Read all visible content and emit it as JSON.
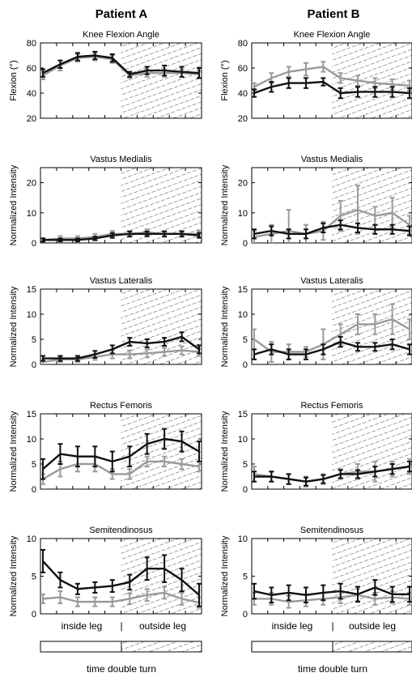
{
  "column_headers": [
    "Patient A",
    "Patient B"
  ],
  "bottom": {
    "segment_labels": [
      "inside leg",
      "|",
      "outside leg"
    ],
    "xlabel": "time double turn"
  },
  "colors": {
    "black_series": "#111111",
    "gray_series": "#9a9a9a",
    "hatch": "#555555"
  },
  "chart_data": [
    {
      "id": "A-knee",
      "type": "line",
      "title": "Knee Flexion Angle",
      "ylabel": "Flexion (°)",
      "ylim": [
        20,
        80
      ],
      "yticks": [
        "20",
        "40",
        "60",
        "80"
      ],
      "grid": false,
      "hatched_region": "outside leg",
      "x": [
        0,
        1,
        2,
        3,
        4,
        5,
        6,
        7,
        8,
        9
      ],
      "series": [
        {
          "color": "black",
          "values": [
            56,
            63,
            69,
            70,
            68,
            55,
            58,
            58,
            57,
            56
          ],
          "err": [
            3,
            3,
            3,
            3,
            3,
            2,
            3,
            4,
            4,
            4
          ]
        },
        {
          "color": "gray",
          "values": [
            54,
            62,
            68,
            69,
            67,
            54,
            56,
            56,
            56,
            55
          ],
          "err": [
            3,
            4,
            3,
            3,
            3,
            2,
            3,
            3,
            3,
            3
          ]
        }
      ]
    },
    {
      "id": "B-knee",
      "type": "line",
      "title": "Knee Flexion Angle",
      "ylabel": "Flexion (°)",
      "ylim": [
        20,
        80
      ],
      "yticks": [
        "20",
        "40",
        "60",
        "80"
      ],
      "grid": false,
      "hatched_region": "outside leg",
      "x": [
        0,
        1,
        2,
        3,
        4,
        5,
        6,
        7,
        8,
        9
      ],
      "series": [
        {
          "color": "black",
          "values": [
            40,
            45,
            48,
            48,
            49,
            40,
            41,
            41,
            41,
            40
          ],
          "err": [
            3,
            4,
            4,
            4,
            3,
            4,
            4,
            4,
            4,
            4
          ]
        },
        {
          "color": "gray",
          "values": [
            45,
            52,
            57,
            59,
            61,
            52,
            50,
            48,
            47,
            46
          ],
          "err": [
            3,
            4,
            4,
            5,
            4,
            4,
            4,
            4,
            4,
            4
          ]
        }
      ]
    },
    {
      "id": "A-vm",
      "type": "line",
      "title": "Vastus Medialis",
      "ylabel": "Normalized Intensity",
      "ylim": [
        0,
        25
      ],
      "yticks": [
        "0",
        "10",
        "20"
      ],
      "grid": false,
      "hatched_region": "outside leg",
      "x": [
        0,
        1,
        2,
        3,
        4,
        5,
        6,
        7,
        8,
        9
      ],
      "series": [
        {
          "color": "black",
          "values": [
            1,
            1,
            1,
            1.5,
            2.5,
            3,
            3,
            3,
            3,
            2.5
          ],
          "err": [
            0.5,
            0.5,
            0.5,
            0.6,
            0.8,
            0.8,
            0.8,
            0.8,
            0.8,
            0.8
          ]
        },
        {
          "color": "gray",
          "values": [
            1,
            1.5,
            1.5,
            2,
            3,
            3,
            3.5,
            3,
            3,
            3
          ],
          "err": [
            0.6,
            0.8,
            0.8,
            1,
            1,
            1,
            1,
            1,
            1,
            1
          ]
        }
      ]
    },
    {
      "id": "B-vm",
      "type": "line",
      "title": "Vastus Medialis",
      "ylabel": "Normalized Intensity",
      "ylim": [
        0,
        25
      ],
      "yticks": [
        "0",
        "10",
        "20"
      ],
      "grid": false,
      "hatched_region": "outside leg",
      "x": [
        0,
        1,
        2,
        3,
        4,
        5,
        6,
        7,
        8,
        9
      ],
      "series": [
        {
          "color": "black",
          "values": [
            3,
            4,
            3,
            3,
            5,
            6,
            5,
            4.5,
            4.5,
            4
          ],
          "err": [
            1.5,
            1.5,
            1.5,
            1.5,
            1.5,
            1.5,
            1.5,
            1.5,
            1.5,
            1.5
          ]
        },
        {
          "color": "gray",
          "values": [
            2,
            3,
            4,
            3,
            4,
            9,
            11,
            9,
            10,
            6
          ],
          "err": [
            2,
            3,
            7,
            3,
            3,
            5,
            8,
            3,
            5,
            3
          ]
        }
      ]
    },
    {
      "id": "A-vl",
      "type": "line",
      "title": "Vastus Lateralis",
      "ylabel": "Normalized Intensity",
      "ylim": [
        0,
        15
      ],
      "yticks": [
        "0",
        "5",
        "10",
        "15"
      ],
      "grid": false,
      "hatched_region": "outside leg",
      "x": [
        0,
        1,
        2,
        3,
        4,
        5,
        6,
        7,
        8,
        9
      ],
      "series": [
        {
          "color": "black",
          "values": [
            1.2,
            1.2,
            1.2,
            2,
            3,
            4.5,
            4.2,
            4.5,
            5.5,
            3
          ],
          "err": [
            0.5,
            0.5,
            0.5,
            0.7,
            0.8,
            0.8,
            0.8,
            0.8,
            0.9,
            0.8
          ]
        },
        {
          "color": "gray",
          "values": [
            0.5,
            1,
            1,
            1.5,
            2,
            2,
            2.2,
            2.5,
            2.8,
            2.5
          ],
          "err": [
            0.5,
            0.5,
            0.5,
            0.6,
            0.8,
            0.8,
            0.8,
            0.8,
            0.8,
            0.8
          ]
        }
      ]
    },
    {
      "id": "B-vl",
      "type": "line",
      "title": "Vastus Lateralis",
      "ylabel": "Normalized Intensity",
      "ylim": [
        0,
        15
      ],
      "yticks": [
        "0",
        "5",
        "10",
        "15"
      ],
      "grid": false,
      "hatched_region": "outside leg",
      "x": [
        0,
        1,
        2,
        3,
        4,
        5,
        6,
        7,
        8,
        9
      ],
      "series": [
        {
          "color": "black",
          "values": [
            2,
            3,
            2,
            2,
            3,
            4.5,
            3.5,
            3.5,
            4,
            3
          ],
          "err": [
            1,
            1,
            1,
            1,
            1,
            1,
            0.8,
            0.8,
            1,
            1
          ]
        },
        {
          "color": "gray",
          "values": [
            5,
            2.5,
            2.5,
            2.5,
            4,
            6,
            8,
            8,
            9,
            7
          ],
          "err": [
            2,
            2,
            1.5,
            1,
            3,
            2,
            2,
            2,
            3,
            2
          ]
        }
      ]
    },
    {
      "id": "A-rf",
      "type": "line",
      "title": "Rectus Femoris",
      "ylabel": "Normalized Intensity",
      "ylim": [
        0,
        15
      ],
      "yticks": [
        "0",
        "5",
        "10",
        "15"
      ],
      "grid": false,
      "hatched_region": "outside leg",
      "x": [
        0,
        1,
        2,
        3,
        4,
        5,
        6,
        7,
        8,
        9
      ],
      "series": [
        {
          "color": "black",
          "values": [
            4,
            7,
            6.5,
            6.5,
            5.5,
            6.5,
            9,
            10,
            9.5,
            7.5
          ],
          "err": [
            2,
            2,
            2,
            2,
            2,
            2,
            2,
            2,
            2,
            2
          ]
        },
        {
          "color": "gray",
          "values": [
            2,
            4,
            5,
            5,
            3,
            3,
            5.5,
            5.5,
            5,
            4.5
          ],
          "err": [
            1,
            1.5,
            1.5,
            1.5,
            1,
            1,
            1,
            1,
            1,
            1
          ]
        }
      ]
    },
    {
      "id": "B-rf",
      "type": "line",
      "title": "Rectus Femoris",
      "ylabel": "Normalized Intensity",
      "ylim": [
        0,
        15
      ],
      "yticks": [
        "0",
        "5",
        "10",
        "15"
      ],
      "grid": false,
      "hatched_region": "outside leg",
      "x": [
        0,
        1,
        2,
        3,
        4,
        5,
        6,
        7,
        8,
        9
      ],
      "series": [
        {
          "color": "black",
          "values": [
            2.5,
            2.5,
            2,
            1.5,
            2,
            3,
            3,
            3.5,
            4,
            4.5
          ],
          "err": [
            1,
            1,
            1,
            0.8,
            0.8,
            0.8,
            0.8,
            1,
            1,
            1
          ]
        },
        {
          "color": "gray",
          "values": [
            3,
            2.5,
            2,
            1.5,
            2,
            3,
            3.5,
            3.5,
            4,
            4.5
          ],
          "err": [
            1.5,
            1,
            1,
            1,
            1,
            1,
            1.5,
            2,
            1.5,
            1.5
          ]
        }
      ]
    },
    {
      "id": "A-st",
      "type": "line",
      "title": "Semitendinosus",
      "ylabel": "Normalized Intensity",
      "ylim": [
        0,
        10
      ],
      "yticks": [
        "0",
        "5",
        "10"
      ],
      "grid": false,
      "hatched_region": "outside leg",
      "x": [
        0,
        1,
        2,
        3,
        4,
        5,
        6,
        7,
        8,
        9
      ],
      "series": [
        {
          "color": "black",
          "values": [
            7,
            4.5,
            3.3,
            3.5,
            3.7,
            4.2,
            6,
            6,
            4.5,
            2.5
          ],
          "err": [
            1.5,
            1,
            0.7,
            0.7,
            0.8,
            1,
            1.5,
            1.8,
            1.5,
            1.5
          ]
        },
        {
          "color": "gray",
          "values": [
            2,
            2.2,
            1.6,
            1.6,
            1.6,
            2,
            2.5,
            2.8,
            2,
            1.5
          ],
          "err": [
            0.6,
            0.8,
            0.6,
            0.6,
            0.6,
            0.7,
            0.8,
            0.8,
            0.8,
            0.7
          ]
        }
      ]
    },
    {
      "id": "B-st",
      "type": "line",
      "title": "Semitendinosus",
      "ylabel": "Normalized Intensity",
      "ylim": [
        0,
        10
      ],
      "yticks": [
        "0",
        "5",
        "10"
      ],
      "grid": false,
      "hatched_region": "outside leg",
      "x": [
        0,
        1,
        2,
        3,
        4,
        5,
        6,
        7,
        8,
        9
      ],
      "series": [
        {
          "color": "black",
          "values": [
            3,
            2.5,
            2.8,
            2.5,
            2.8,
            3,
            2.6,
            3.5,
            2.6,
            2.6
          ],
          "err": [
            1,
            1,
            1,
            1,
            1,
            1,
            1,
            1,
            1,
            1
          ]
        },
        {
          "color": "gray",
          "values": [
            2,
            2,
            1.6,
            1.8,
            2,
            2.2,
            2.5,
            2,
            2.2,
            2
          ],
          "err": [
            0.8,
            0.8,
            0.8,
            0.8,
            0.8,
            0.8,
            0.8,
            0.8,
            0.8,
            0.8
          ]
        }
      ]
    }
  ]
}
